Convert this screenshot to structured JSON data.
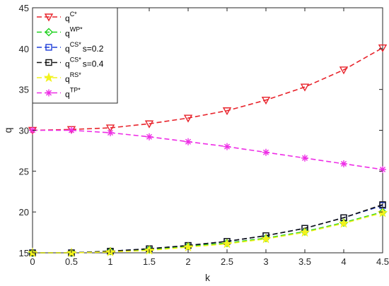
{
  "chart_data": {
    "type": "line",
    "xlabel": "k",
    "ylabel": "q",
    "xlim": [
      0,
      4.5
    ],
    "ylim": [
      15,
      45
    ],
    "x": [
      0,
      0.5,
      1,
      1.5,
      2,
      2.5,
      3,
      3.5,
      4,
      4.5
    ],
    "x_ticks": [
      "0",
      "0.5",
      "1",
      "1.5",
      "2",
      "2.5",
      "3",
      "3.5",
      "4",
      "4.5"
    ],
    "y_ticks": [
      "15",
      "20",
      "25",
      "30",
      "35",
      "40",
      "45"
    ],
    "legend_position": "top-left",
    "grid": false,
    "series": [
      {
        "name_base": "q",
        "name_sup": "C*",
        "name_suffix": "",
        "color": "#e8232b",
        "marker": "triangle-down",
        "values": [
          30.0,
          30.1,
          30.3,
          30.8,
          31.5,
          32.4,
          33.7,
          35.3,
          37.4,
          40.1
        ]
      },
      {
        "name_base": "q",
        "name_sup": "WP*",
        "name_suffix": "",
        "color": "#1fd11f",
        "marker": "diamond",
        "values": [
          15.0,
          15.0,
          15.2,
          15.4,
          15.8,
          16.2,
          16.8,
          17.6,
          18.7,
          20.0
        ]
      },
      {
        "name_base": "q",
        "name_sup": "CS*",
        "name_suffix": "s=0.2",
        "color": "#1f3fd8",
        "marker": "square",
        "values": [
          15.0,
          15.0,
          15.2,
          15.5,
          15.9,
          16.4,
          17.1,
          18.0,
          19.3,
          20.8
        ]
      },
      {
        "name_base": "q",
        "name_sup": "CS*",
        "name_suffix": "s=0.4",
        "color": "#111111",
        "marker": "square",
        "values": [
          15.0,
          15.0,
          15.2,
          15.5,
          15.9,
          16.4,
          17.1,
          18.0,
          19.3,
          20.9
        ]
      },
      {
        "name_base": "q",
        "name_sup": "RS*",
        "name_suffix": "",
        "color": "#f2f21c",
        "marker": "star",
        "values": [
          15.0,
          15.0,
          15.1,
          15.3,
          15.7,
          16.1,
          16.7,
          17.5,
          18.6,
          19.9
        ]
      },
      {
        "name_base": "q",
        "name_sup": "TP*",
        "name_suffix": "",
        "color": "#ee2ee6",
        "marker": "asterisk",
        "values": [
          30.0,
          30.0,
          29.7,
          29.2,
          28.6,
          28.0,
          27.3,
          26.6,
          25.9,
          25.2
        ]
      }
    ]
  }
}
